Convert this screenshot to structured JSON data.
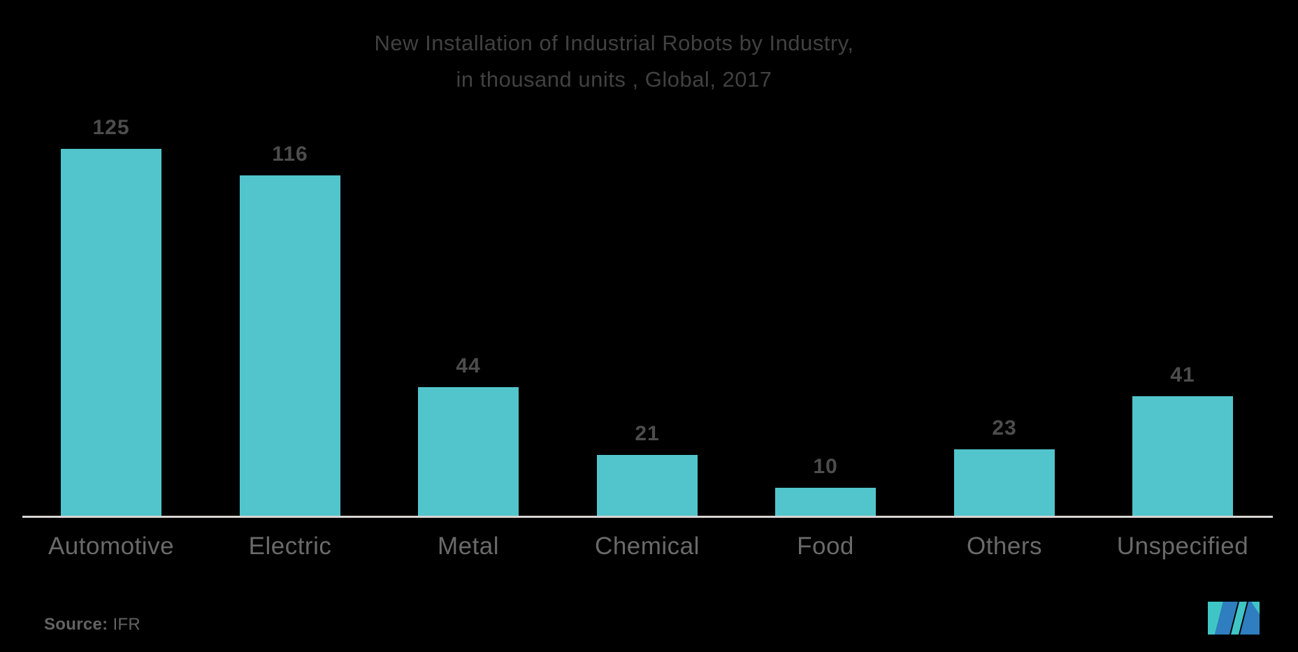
{
  "background_color": "#000000",
  "title": {
    "line1": "New Installation of Industrial Robots by Industry,",
    "line2": "in thousand units , Global, 2017",
    "color": "#414141"
  },
  "chart_data": {
    "type": "bar",
    "title": "New Installation of Industrial Robots by Industry, in thousand units , Global, 2017",
    "categories": [
      "Automotive",
      "Electric",
      "Metal",
      "Chemical",
      "Food",
      "Others",
      "Unspecified"
    ],
    "values": [
      125,
      116,
      44,
      21,
      10,
      23,
      41
    ],
    "xlabel": "",
    "ylabel": "",
    "ylim": [
      0,
      132
    ],
    "grid": false,
    "legend": false,
    "value_labels_shown": true,
    "bar_color": "#52C5CC",
    "value_label_color": "#4D4D4D",
    "category_label_color": "#6A6A6A",
    "axis_line_color": "#D8D5D3"
  },
  "source": {
    "label": "Source:",
    "value": "IFR"
  },
  "logo": {
    "name": "mordor-intelligence-logo",
    "teal": "#40C5C7",
    "blue": "#2E7EC0"
  }
}
